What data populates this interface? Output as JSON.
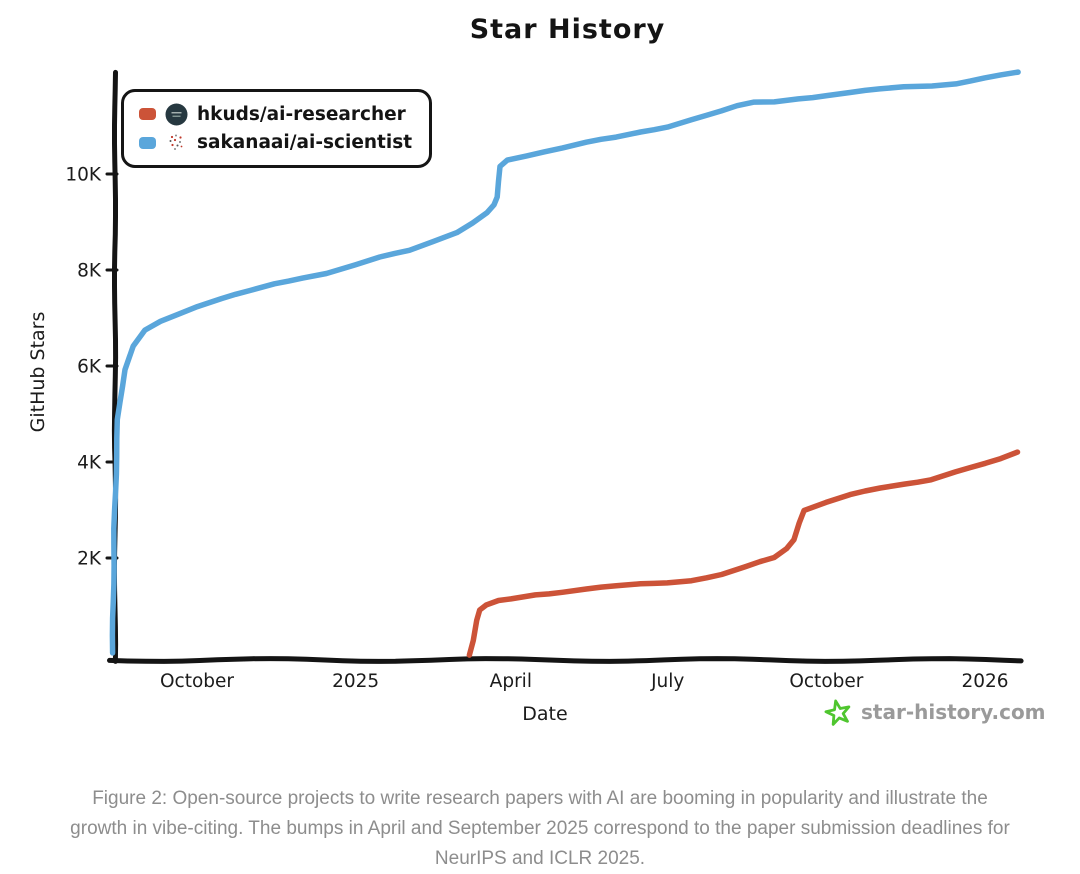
{
  "title": "Star History",
  "legend": {
    "items": [
      {
        "label": "hkuds/ai-researcher",
        "color": "#cc5338",
        "avatar_icon": "hkuds-avatar"
      },
      {
        "label": "sakanaai/ai-scientist",
        "color": "#5aa6db",
        "avatar_icon": "sakanaai-avatar"
      }
    ]
  },
  "axes": {
    "y_label": "GitHub Stars",
    "x_label": "Date",
    "y_ticks": [
      {
        "label": "2K",
        "value": 2000
      },
      {
        "label": "4K",
        "value": 4000
      },
      {
        "label": "6K",
        "value": 6000
      },
      {
        "label": "8K",
        "value": 8000
      },
      {
        "label": "10K",
        "value": 10000
      }
    ],
    "x_ticks": [
      {
        "label": "October",
        "date": "2024-10-01"
      },
      {
        "label": "2025",
        "date": "2025-01-01"
      },
      {
        "label": "April",
        "date": "2025-04-01"
      },
      {
        "label": "July",
        "date": "2025-07-01"
      },
      {
        "label": "October",
        "date": "2025-10-01"
      },
      {
        "label": "2026",
        "date": "2026-01-01"
      }
    ]
  },
  "watermark": {
    "text": "star-history.com",
    "icon": "star-doodle-icon",
    "icon_color": "#4fc62f",
    "text_color": "#9a9a9a"
  },
  "caption": {
    "lines": [
      "Figure 2: Open-source projects to write research papers with AI are booming in popularity and illustrate the",
      "growth in vibe-citing. The bumps in April and September 2025 correspond to the paper submission deadlines for",
      "NeurIPS and ICLR 2025."
    ]
  },
  "chart_data": {
    "type": "line",
    "title": "Star History",
    "xlabel": "Date",
    "ylabel": "GitHub Stars",
    "x_range": [
      "2024-08-13",
      "2026-01-20"
    ],
    "ylim": [
      0,
      12500
    ],
    "y_tick_values": [
      2000,
      4000,
      6000,
      8000,
      10000
    ],
    "x_tick_labels": [
      "October",
      "2025",
      "April",
      "July",
      "October",
      "2026"
    ],
    "legend_position": "top-left",
    "grid": false,
    "series": [
      {
        "name": "hkuds/ai-researcher",
        "color": "#cc5338",
        "points": [
          [
            "2025-03-08",
            0
          ],
          [
            "2025-03-10",
            300
          ],
          [
            "2025-03-12",
            700
          ],
          [
            "2025-03-14",
            900
          ],
          [
            "2025-03-18",
            1000
          ],
          [
            "2025-03-25",
            1100
          ],
          [
            "2025-04-01",
            1150
          ],
          [
            "2025-04-15",
            1250
          ],
          [
            "2025-05-01",
            1300
          ],
          [
            "2025-05-15",
            1350
          ],
          [
            "2025-06-01",
            1400
          ],
          [
            "2025-06-15",
            1450
          ],
          [
            "2025-07-01",
            1500
          ],
          [
            "2025-07-15",
            1550
          ],
          [
            "2025-08-01",
            1650
          ],
          [
            "2025-08-15",
            1800
          ],
          [
            "2025-09-01",
            2000
          ],
          [
            "2025-09-08",
            2200
          ],
          [
            "2025-09-12",
            2400
          ],
          [
            "2025-09-15",
            2750
          ],
          [
            "2025-09-18",
            3000
          ],
          [
            "2025-10-01",
            3150
          ],
          [
            "2025-10-15",
            3300
          ],
          [
            "2025-11-01",
            3450
          ],
          [
            "2025-11-15",
            3550
          ],
          [
            "2025-12-01",
            3650
          ],
          [
            "2025-12-15",
            3800
          ],
          [
            "2026-01-01",
            3950
          ],
          [
            "2026-01-10",
            4050
          ],
          [
            "2026-01-20",
            4200
          ]
        ]
      },
      {
        "name": "sakanaai/ai-scientist",
        "color": "#5aa6db",
        "points": [
          [
            "2024-08-13",
            0
          ],
          [
            "2024-08-14",
            2600
          ],
          [
            "2024-08-16",
            4900
          ],
          [
            "2024-08-20",
            5900
          ],
          [
            "2024-08-25",
            6400
          ],
          [
            "2024-09-01",
            6750
          ],
          [
            "2024-09-10",
            6950
          ],
          [
            "2024-09-20",
            7100
          ],
          [
            "2024-10-01",
            7250
          ],
          [
            "2024-10-15",
            7400
          ],
          [
            "2024-11-01",
            7550
          ],
          [
            "2024-11-15",
            7700
          ],
          [
            "2024-12-01",
            7850
          ],
          [
            "2024-12-15",
            7950
          ],
          [
            "2025-01-01",
            8100
          ],
          [
            "2025-01-15",
            8250
          ],
          [
            "2025-02-01",
            8400
          ],
          [
            "2025-02-15",
            8600
          ],
          [
            "2025-03-01",
            8800
          ],
          [
            "2025-03-10",
            9000
          ],
          [
            "2025-03-18",
            9200
          ],
          [
            "2025-03-22",
            9350
          ],
          [
            "2025-03-24",
            9500
          ],
          [
            "2025-03-26",
            10150
          ],
          [
            "2025-03-30",
            10300
          ],
          [
            "2025-04-10",
            10400
          ],
          [
            "2025-04-20",
            10480
          ],
          [
            "2025-05-01",
            10550
          ],
          [
            "2025-05-15",
            10650
          ],
          [
            "2025-06-01",
            10750
          ],
          [
            "2025-06-15",
            10870
          ],
          [
            "2025-07-01",
            11000
          ],
          [
            "2025-07-15",
            11150
          ],
          [
            "2025-08-01",
            11300
          ],
          [
            "2025-08-10",
            11400
          ],
          [
            "2025-08-20",
            11480
          ],
          [
            "2025-09-01",
            11500
          ],
          [
            "2025-09-15",
            11580
          ],
          [
            "2025-10-01",
            11650
          ],
          [
            "2025-10-15",
            11700
          ],
          [
            "2025-11-01",
            11750
          ],
          [
            "2025-11-15",
            11800
          ],
          [
            "2025-12-01",
            11850
          ],
          [
            "2025-12-15",
            11900
          ],
          [
            "2026-01-01",
            12000
          ],
          [
            "2026-01-20",
            12100
          ]
        ]
      }
    ]
  }
}
